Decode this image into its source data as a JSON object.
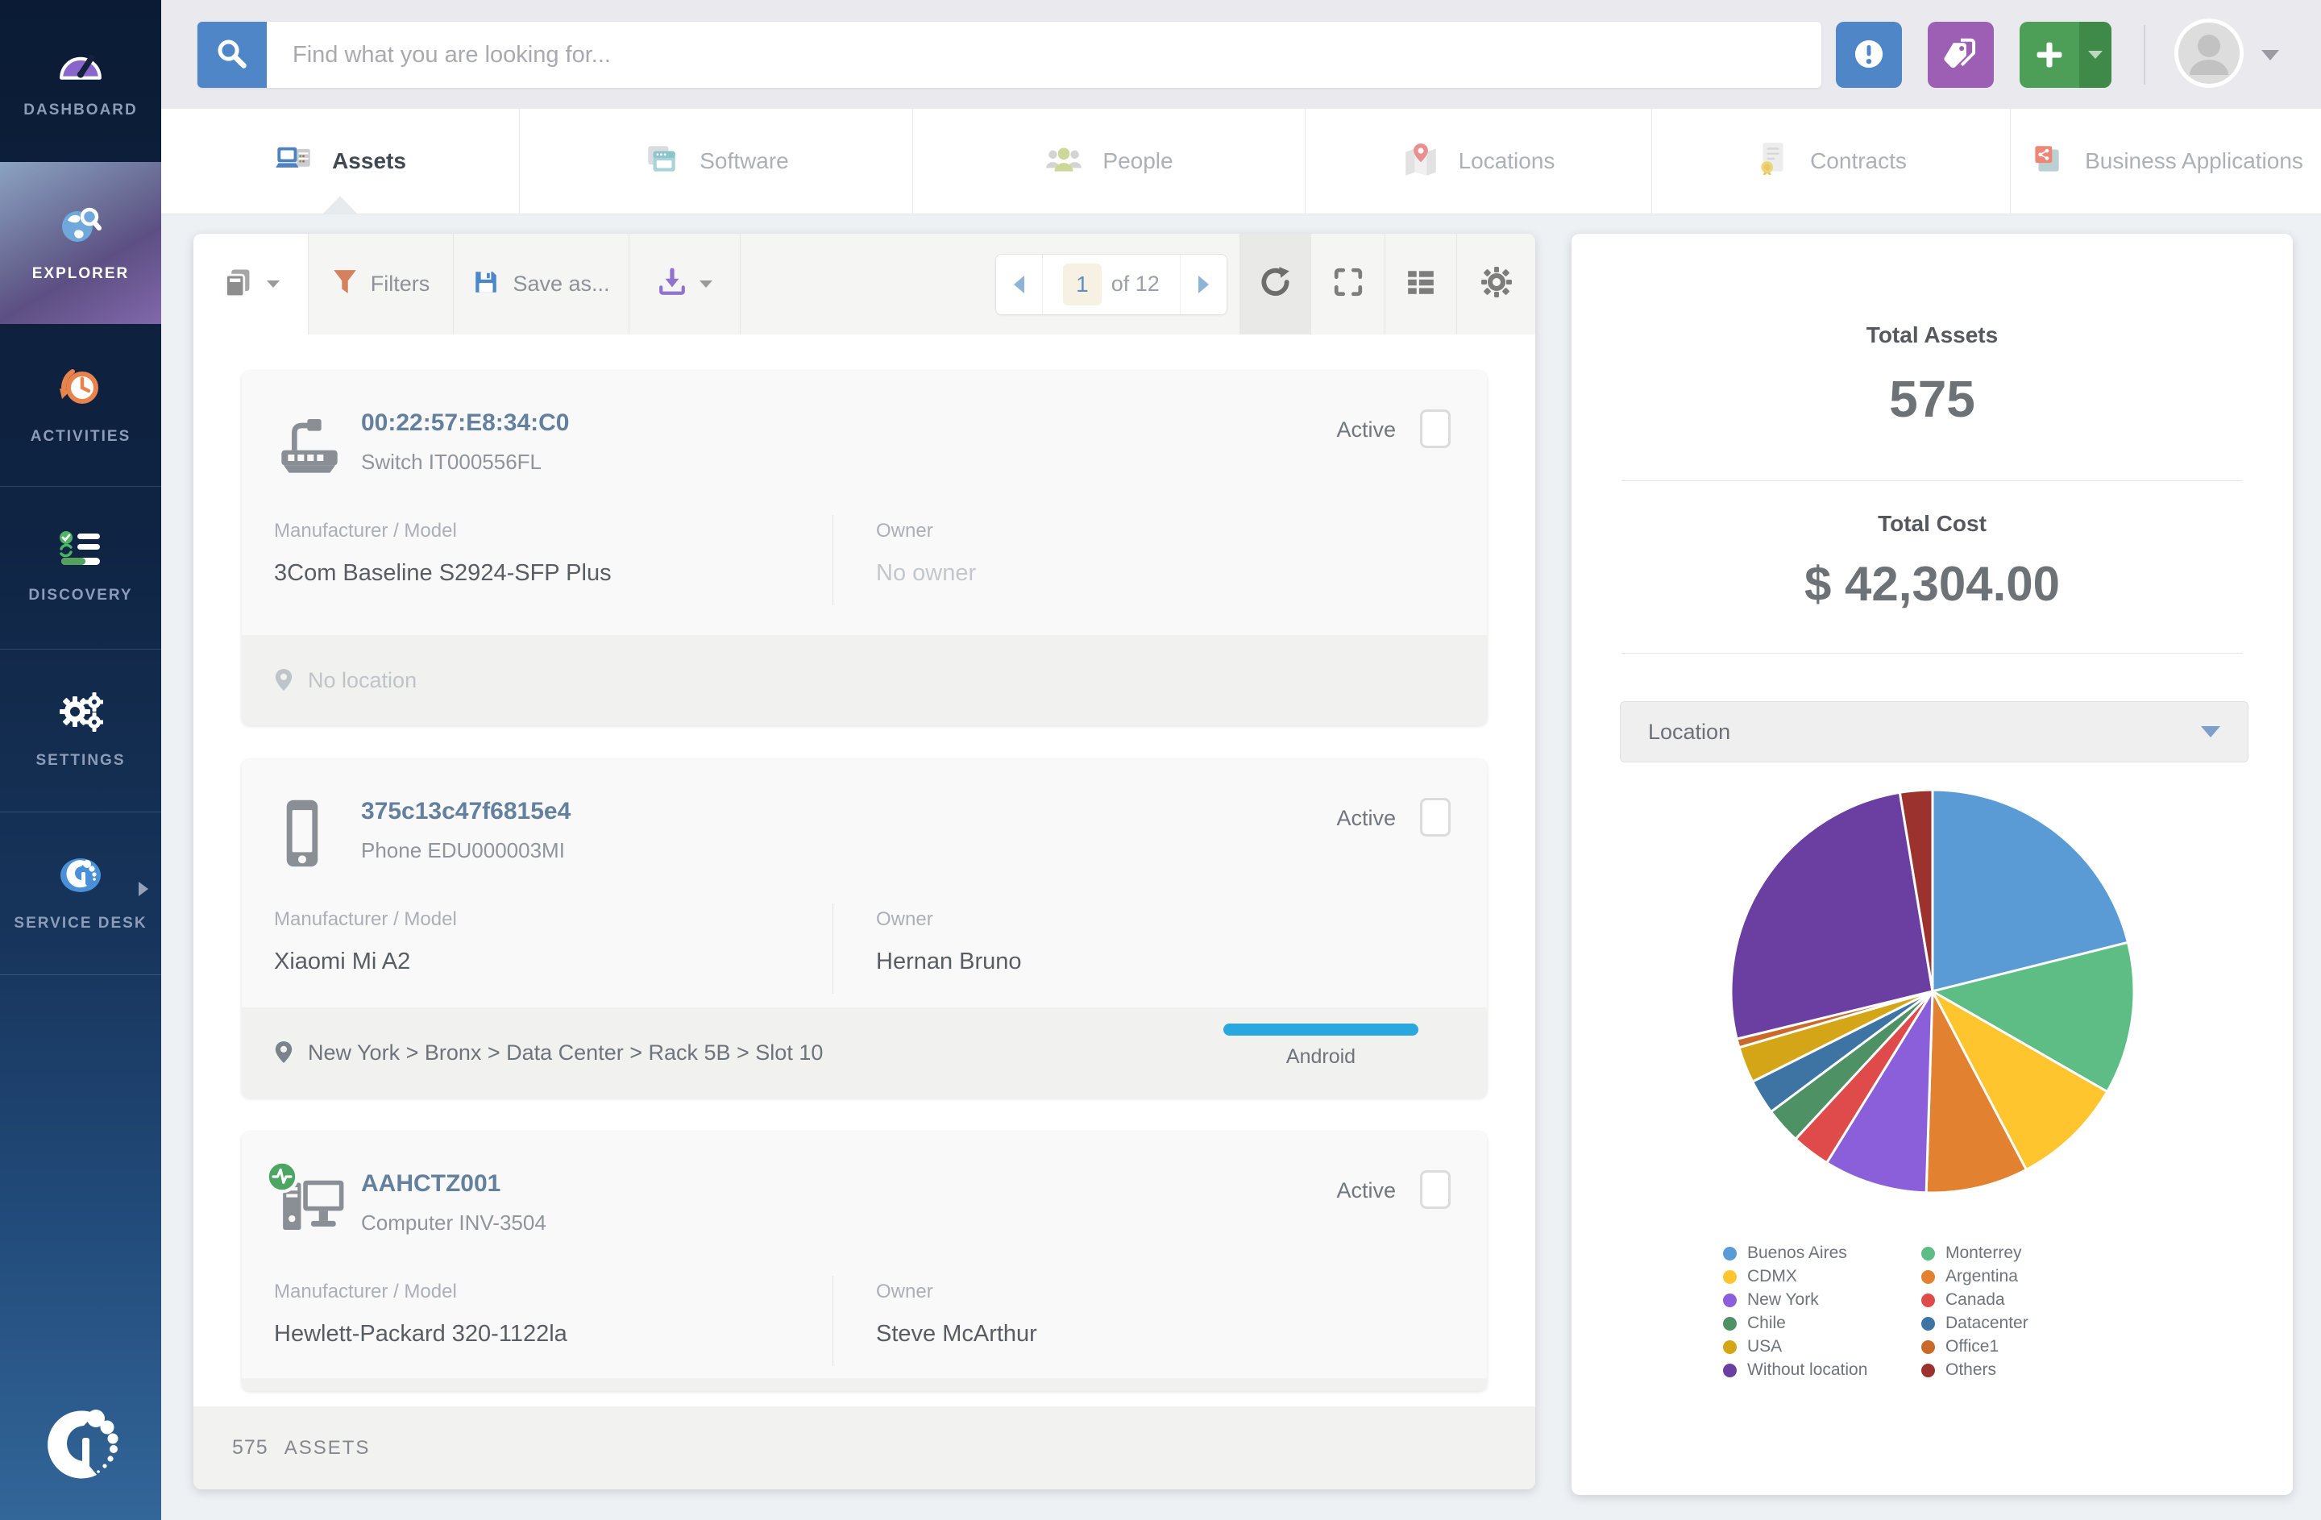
{
  "sidebar": {
    "items": [
      {
        "label": "DASHBOARD",
        "icon": "gauge-icon"
      },
      {
        "label": "EXPLORER",
        "icon": "globe-search-icon",
        "active": true
      },
      {
        "label": "ACTIVITIES",
        "icon": "clock-history-icon"
      },
      {
        "label": "DISCOVERY",
        "icon": "checklist-sync-icon"
      },
      {
        "label": "SETTINGS",
        "icon": "gears-icon"
      },
      {
        "label": "SERVICE DESK",
        "icon": "service-desk-icon"
      }
    ]
  },
  "header": {
    "search_placeholder": "Find what you are looking for...",
    "buttons": {
      "alerts": "alerts",
      "tags": "tags",
      "add": "+"
    }
  },
  "tabs": [
    {
      "label": "Assets",
      "active": true
    },
    {
      "label": "Software"
    },
    {
      "label": "People"
    },
    {
      "label": "Locations"
    },
    {
      "label": "Contracts"
    },
    {
      "label": "Business Applications"
    }
  ],
  "toolbar": {
    "filters_label": "Filters",
    "save_as_label": "Save as...",
    "pagination": {
      "current": "1",
      "total_label": "of 12"
    }
  },
  "assets": [
    {
      "name": "00:22:57:E8:34:C0",
      "subtitle": "Switch IT000556FL",
      "type": "switch",
      "status": "Active",
      "manufacturer_label": "Manufacturer / Model",
      "manufacturer": "3Com Baseline S2924-SFP Plus",
      "owner_label": "Owner",
      "owner": "No owner",
      "owner_empty": true,
      "location": "No location",
      "location_empty": true
    },
    {
      "name": "375c13c47f6815e4",
      "subtitle": "Phone EDU000003MI",
      "type": "phone",
      "status": "Active",
      "manufacturer_label": "Manufacturer / Model",
      "manufacturer": "Xiaomi Mi A2",
      "owner_label": "Owner",
      "owner": "Hernan Bruno",
      "location": "New York > Bronx > Data Center > Rack 5B > Slot 10",
      "os_badge": "Android"
    },
    {
      "name": "AAHCTZ001",
      "subtitle": "Computer INV-3504",
      "type": "computer",
      "status": "Active",
      "manufacturer_label": "Manufacturer / Model",
      "manufacturer": "Hewlett-Packard 320-1122la",
      "owner_label": "Owner",
      "owner": "Steve McArthur",
      "monitored": true,
      "location_cut": true
    }
  ],
  "list_footer": {
    "count": "575",
    "label": "ASSETS"
  },
  "summary": {
    "total_assets_label": "Total Assets",
    "total_assets_value": "575",
    "total_cost_label": "Total Cost",
    "total_cost_value": "$ 42,304.00",
    "location_filter": "Location"
  },
  "chart_data": {
    "type": "pie",
    "legend_position": "bottom",
    "slices": [
      {
        "label": "Buenos Aires",
        "value": 21.1,
        "color": "#5b9bd5"
      },
      {
        "label": "Monterrey",
        "value": 12.2,
        "color": "#5dbd84"
      },
      {
        "label": "CDMX",
        "value": 9.0,
        "color": "#fec52e"
      },
      {
        "label": "Argentina",
        "value": 8.2,
        "color": "#e2812f"
      },
      {
        "label": "New York",
        "value": 8.3,
        "color": "#8a5fd9"
      },
      {
        "label": "Canada",
        "value": 3.1,
        "color": "#df4b4b"
      },
      {
        "label": "Chile",
        "value": 2.9,
        "color": "#4e9164"
      },
      {
        "label": "Datacenter",
        "value": 2.8,
        "color": "#3d74a3"
      },
      {
        "label": "USA",
        "value": 2.9,
        "color": "#d3a517"
      },
      {
        "label": "Office1",
        "value": 0.7,
        "color": "#c96a2b"
      },
      {
        "label": "Without location",
        "value": 26.2,
        "color": "#6a3fa1"
      },
      {
        "label": "Others",
        "value": 2.6,
        "color": "#9c322e"
      }
    ]
  }
}
